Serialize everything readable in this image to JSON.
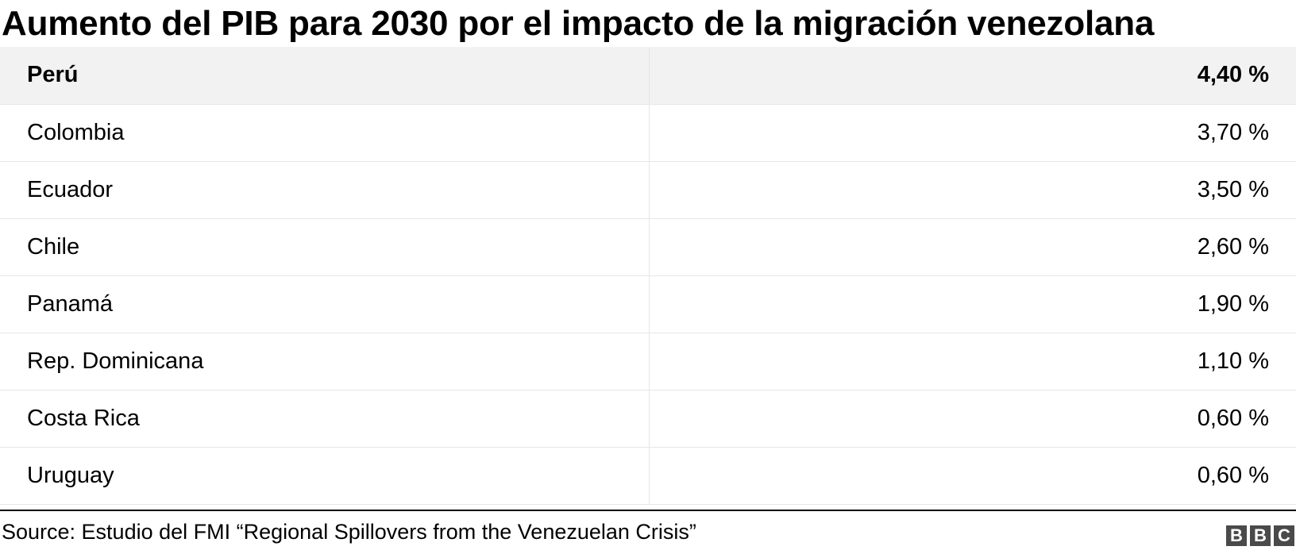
{
  "chart_data": {
    "type": "table",
    "title": "Aumento del PIB para 2030 por el impacto de la migración venezolana",
    "header": {
      "label": "Perú",
      "value": "4,40 %"
    },
    "rows": [
      {
        "label": "Colombia",
        "value": "3,70 %"
      },
      {
        "label": "Ecuador",
        "value": "3,50 %"
      },
      {
        "label": "Chile",
        "value": "2,60 %"
      },
      {
        "label": "Panamá",
        "value": "1,90 %"
      },
      {
        "label": "Rep. Dominicana",
        "value": "1,10 %"
      },
      {
        "label": "Costa Rica",
        "value": "0,60 %"
      },
      {
        "label": "Uruguay",
        "value": "0,60 %"
      }
    ],
    "source": "Source: Estudio del FMI “Regional Spillovers from the Venezuelan Crisis”"
  },
  "logo": {
    "letters": [
      "B",
      "B",
      "C"
    ],
    "block_color": "#4a4a4a"
  },
  "colors": {
    "header_background": "#f2f2f2",
    "grid_line": "#e6e6e6",
    "text": "#000000"
  }
}
